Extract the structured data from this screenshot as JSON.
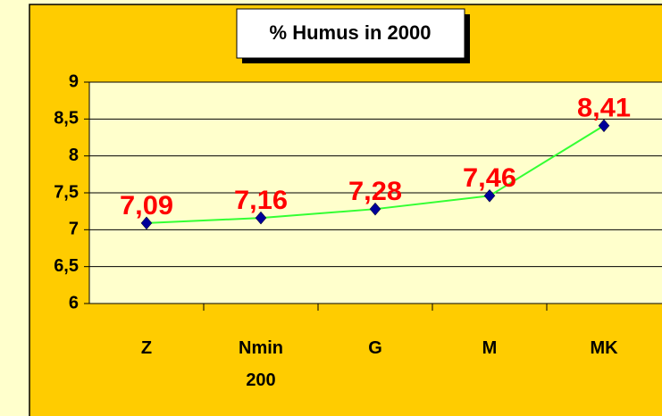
{
  "chart_data": {
    "type": "line",
    "title": "% Humus in 2000",
    "categories": [
      "Z",
      "Nmin 200",
      "G",
      "M",
      "MK"
    ],
    "series": [
      {
        "name": "% Humus",
        "color": "#33ff33",
        "marker_color": "#000099",
        "label_color": "#ff0000",
        "values": [
          7.09,
          7.16,
          7.28,
          7.46,
          8.41
        ],
        "value_labels": [
          "7,09",
          "7,16",
          "7,28",
          "7,46",
          "8,41"
        ]
      }
    ],
    "ylim": [
      6,
      9
    ],
    "yticks": [
      6,
      {
        "value": 6.5,
        "label": "6,5"
      },
      7,
      {
        "value": 7.5,
        "label": "7,5"
      },
      8,
      {
        "value": 8.5,
        "label": "8,5"
      },
      9
    ],
    "grid": true
  }
}
